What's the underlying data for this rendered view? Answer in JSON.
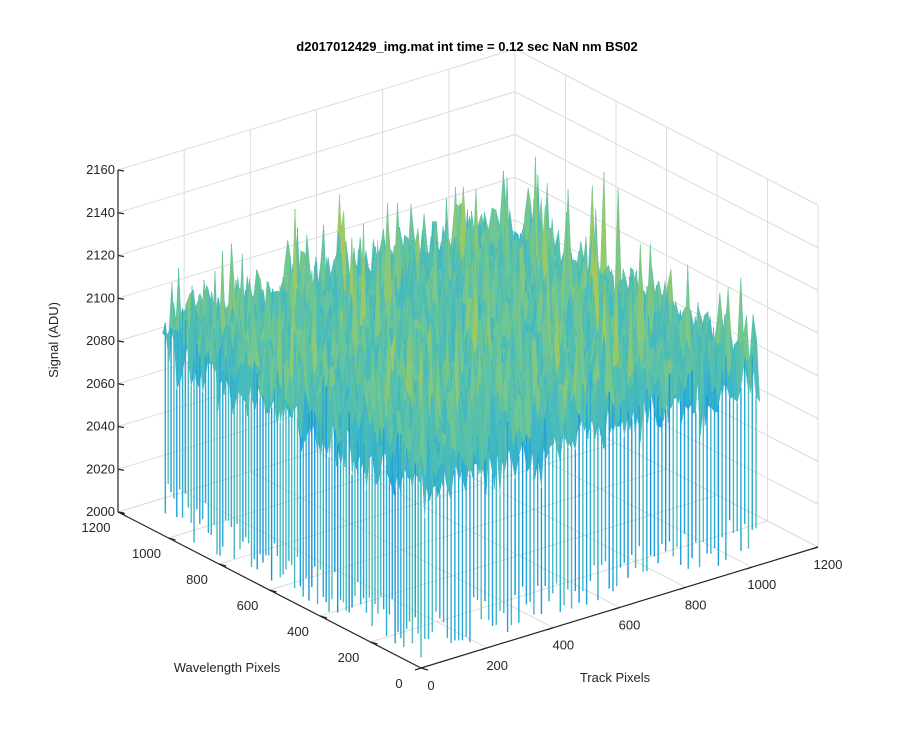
{
  "chart_data": {
    "type": "surface",
    "title": "d2017012429_img.mat int time = 0.12 sec  NaN nm BS02",
    "xlabel": "Track Pixels",
    "ylabel": "Wavelength Pixels",
    "zlabel": "Signal (ADU)",
    "xlim": [
      0,
      1200
    ],
    "ylim": [
      0,
      1200
    ],
    "zlim": [
      2000,
      2160
    ],
    "xticks": [
      "0",
      "200",
      "400",
      "600",
      "800",
      "1000",
      "1200"
    ],
    "yticks": [
      "0",
      "200",
      "400",
      "600",
      "800",
      "1000",
      "1200"
    ],
    "zticks": [
      "2000",
      "2020",
      "2040",
      "2060",
      "2080",
      "2100",
      "2120",
      "2140",
      "2160"
    ],
    "data_extent": {
      "x": [
        0,
        1024
      ],
      "y": [
        0,
        1024
      ]
    },
    "signal_summary": {
      "typical_min": 2010,
      "typical_mean": 2085,
      "typical_max": 2150
    },
    "colormap": [
      "#0072bd",
      "#1b9ee0",
      "#3fb8c6",
      "#6fc793",
      "#a7c95a",
      "#e2c43c"
    ],
    "grid": true
  }
}
